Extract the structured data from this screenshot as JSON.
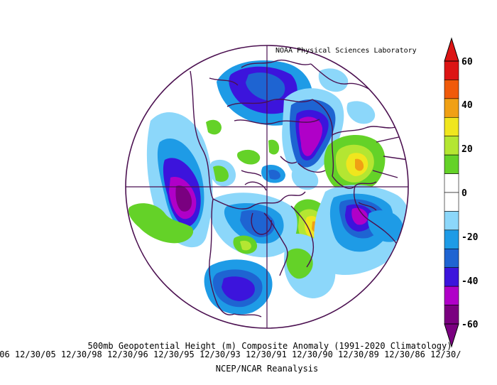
{
  "lab_label": "NOAA Physical Sciences Laboratory",
  "title": "500mb Geopotential Height (m) Composite Anomaly (1991-2020 Climatology)",
  "dates": "/06 12/30/05 12/30/98 12/30/96 12/30/95 12/30/93 12/30/91 12/30/90 12/30/89 12/30/86 12/30/",
  "source": "NCEP/NCAR Reanalysis",
  "colorbar": {
    "ticks": [
      "60",
      "40",
      "20",
      "0",
      "-20",
      "-40",
      "-60"
    ],
    "colors": [
      "#7a0080",
      "#b000c8",
      "#3c14dc",
      "#1e64d2",
      "#1e9be6",
      "#8cd7fa",
      "#ffffff",
      "#ffffff",
      "#64d228",
      "#b4e632",
      "#f0e61e",
      "#f0a014",
      "#f05a0a",
      "#dc1414"
    ]
  }
}
